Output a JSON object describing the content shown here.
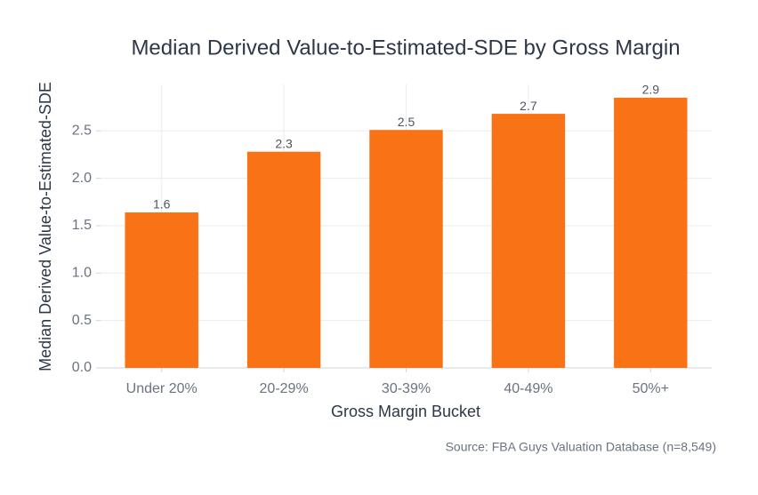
{
  "chart_data": {
    "type": "bar",
    "title": "Median Derived Value-to-Estimated-SDE by Gross Margin",
    "x_label": "Gross Margin Bucket",
    "y_label": "Median Derived Value-to-Estimated-SDE",
    "source": "Source: FBA Guys Valuation Database (n=8,549)",
    "categories": [
      "Under 20%",
      "20-29%",
      "30-39%",
      "40-49%",
      "50%+"
    ],
    "values": [
      1.64,
      2.28,
      2.51,
      2.68,
      2.85
    ],
    "value_labels": [
      "1.6",
      "2.3",
      "2.5",
      "2.7",
      "2.9"
    ],
    "color": "#f97316",
    "ylim": [
      0,
      2.99
    ],
    "yticks": [
      {
        "value": 0,
        "label": "0.0"
      },
      0.5,
      {
        "value": 1,
        "label": "1.0"
      },
      1.5,
      {
        "value": 2,
        "label": "2.0"
      },
      2.5
    ],
    "grid": true
  }
}
